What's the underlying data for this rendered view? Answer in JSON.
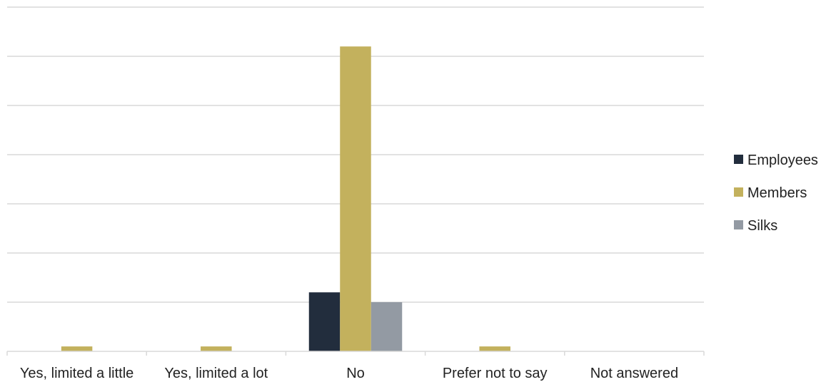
{
  "chart_data": {
    "type": "bar",
    "categories": [
      "Yes, limited a little",
      "Yes, limited a lot",
      "No",
      "Prefer not to say",
      "Not answered"
    ],
    "series": [
      {
        "name": "Employees",
        "color": "#222d3d",
        "values": [
          0,
          0,
          12,
          0,
          0
        ]
      },
      {
        "name": "Members",
        "color": "#c3b15d",
        "values": [
          1,
          1,
          62,
          1,
          0
        ]
      },
      {
        "name": "Silks",
        "color": "#939aa3",
        "values": [
          0,
          0,
          10,
          0,
          0
        ]
      }
    ],
    "ylim": [
      0,
      70
    ],
    "ytick_step": 10,
    "grid": true,
    "show_y_axis_labels": false,
    "legend_position": "right",
    "xlabel": "",
    "ylabel": ""
  }
}
